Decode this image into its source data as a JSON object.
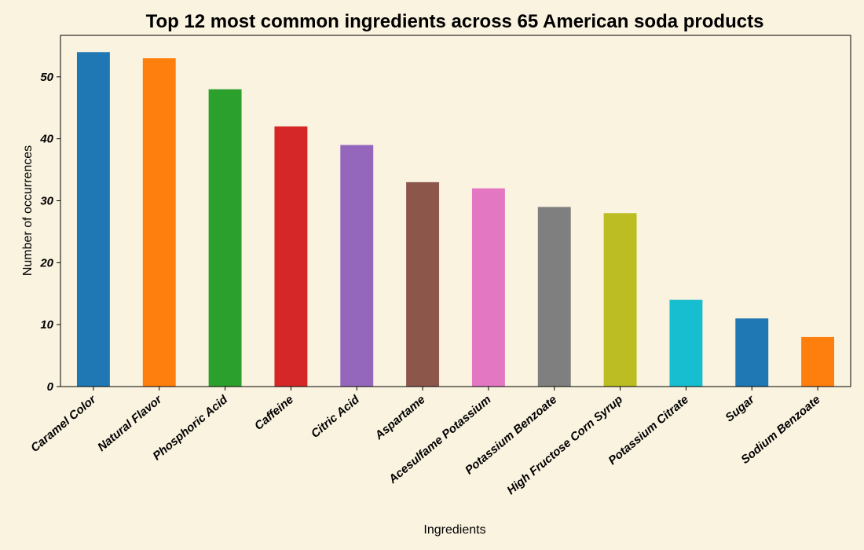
{
  "chart_data": {
    "type": "bar",
    "title": "Top 12 most common ingredients across 65 American soda products",
    "xlabel": "Ingredients",
    "ylabel": "Number of occurrences",
    "categories": [
      "Caramel Color",
      "Natural Flavor",
      "Phosphoric Acid",
      "Caffeine",
      "Citric Acid",
      "Aspartame",
      "Acesulfame Potassium",
      "Potassium Benzoate",
      "High Fructose Corn Syrup",
      "Potassium Citrate",
      "Sugar",
      "Sodium Benzoate"
    ],
    "values": [
      54,
      53,
      48,
      42,
      39,
      33,
      32,
      29,
      28,
      14,
      11,
      8
    ],
    "ylim": [
      0,
      56.7
    ],
    "yticks": [
      0,
      10,
      20,
      30,
      40,
      50
    ],
    "grid": false,
    "colors": [
      "#1f77b4",
      "#ff7f0e",
      "#2ca02c",
      "#d62728",
      "#9467bd",
      "#8c564b",
      "#e377c2",
      "#7f7f7f",
      "#bcbd22",
      "#17becf",
      "#1f77b4",
      "#ff7f0e"
    ],
    "background": "#faf3e0"
  }
}
